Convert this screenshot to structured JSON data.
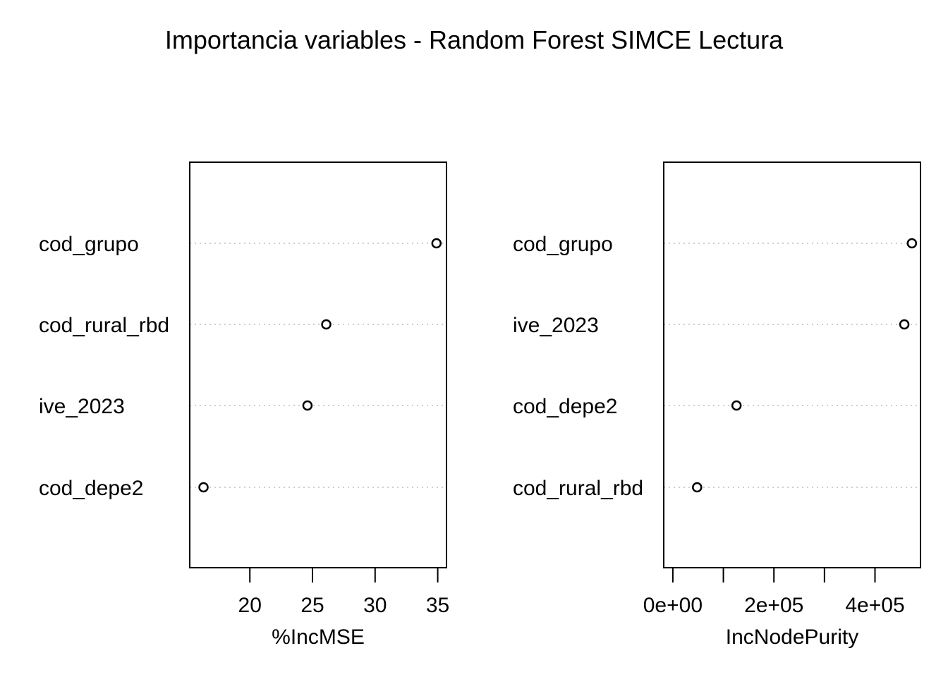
{
  "chart_data": {
    "type": "scatter",
    "title": "Importancia variables - Random Forest SIMCE Lectura",
    "panels": [
      {
        "xlabel": "%IncMSE",
        "xlim": [
          15.2,
          35.7
        ],
        "xticks": [
          20,
          25,
          30,
          35
        ],
        "xtick_labels": [
          "20",
          "25",
          "30",
          "35"
        ],
        "categories": [
          "cod_grupo",
          "cod_rural_rbd",
          "ive_2023",
          "cod_depe2"
        ],
        "values": [
          34.9,
          26.1,
          24.6,
          16.3
        ]
      },
      {
        "xlabel": "IncNodePurity",
        "xlim": [
          -18000,
          490000
        ],
        "xticks": [
          0,
          100000,
          200000,
          300000,
          400000
        ],
        "xtick_labels": [
          "0e+00",
          "",
          "2e+05",
          "",
          "4e+05"
        ],
        "categories": [
          "cod_grupo",
          "ive_2023",
          "cod_depe2",
          "cod_rural_rbd"
        ],
        "values": [
          473000,
          458000,
          126000,
          48000
        ]
      }
    ]
  }
}
